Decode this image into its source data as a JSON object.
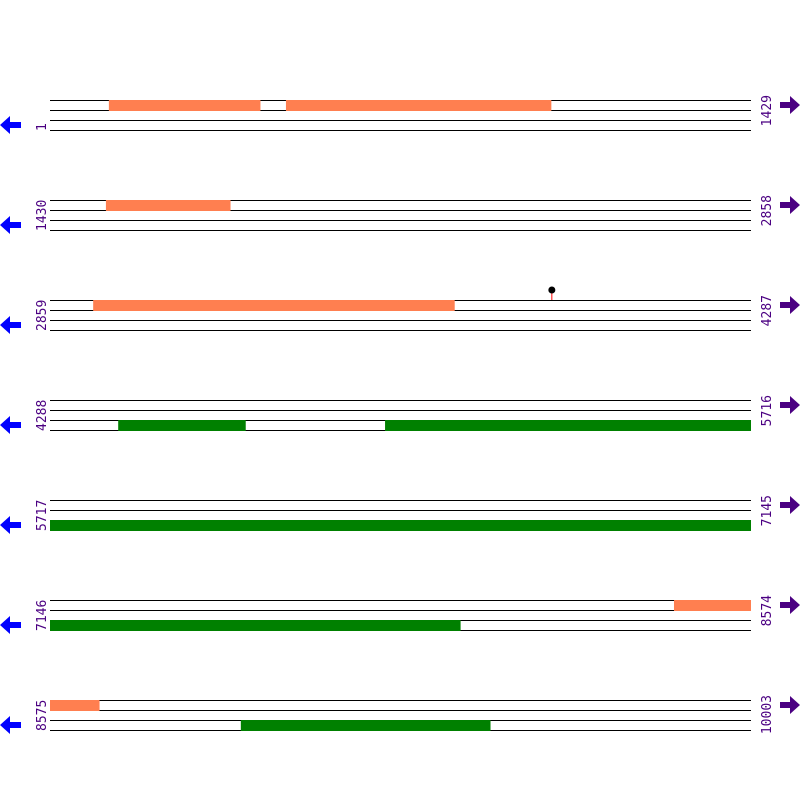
{
  "colors": {
    "forward_feature": "#ff7f50",
    "reverse_feature": "#008000",
    "line": "#000000",
    "label": "#4b0082",
    "left_arrow": "#0000ff",
    "right_arrow": "#4b0082",
    "marker_stem": "#ff0000",
    "marker_head": "#000000"
  },
  "bp_per_row": 1429,
  "rows": [
    {
      "start": "1",
      "end": "1429",
      "startbp": 1
    },
    {
      "start": "1430",
      "end": "2858",
      "startbp": 1430
    },
    {
      "start": "2859",
      "end": "4287",
      "startbp": 2859
    },
    {
      "start": "4288",
      "end": "5716",
      "startbp": 4288
    },
    {
      "start": "5717",
      "end": "7145",
      "startbp": 5717
    },
    {
      "start": "7146",
      "end": "8574",
      "startbp": 7146
    },
    {
      "start": "8575",
      "end": "10003",
      "startbp": 8575
    }
  ],
  "features": [
    {
      "strand": "forward",
      "from": 121,
      "to": 429
    },
    {
      "strand": "forward",
      "from": 482,
      "to": 1022
    },
    {
      "strand": "forward",
      "from": 1544,
      "to": 1797
    },
    {
      "strand": "forward",
      "from": 2947,
      "to": 3683
    },
    {
      "strand": "reverse",
      "from": 4427,
      "to": 4686
    },
    {
      "strand": "reverse",
      "from": 4971,
      "to": 7982
    },
    {
      "strand": "forward",
      "from": 8418,
      "to": 8675
    },
    {
      "strand": "reverse",
      "from": 8964,
      "to": 9472
    }
  ],
  "markers": [
    {
      "position": 3882
    }
  ],
  "icons": {
    "left": "arrow-left-icon",
    "right": "arrow-right-icon"
  }
}
